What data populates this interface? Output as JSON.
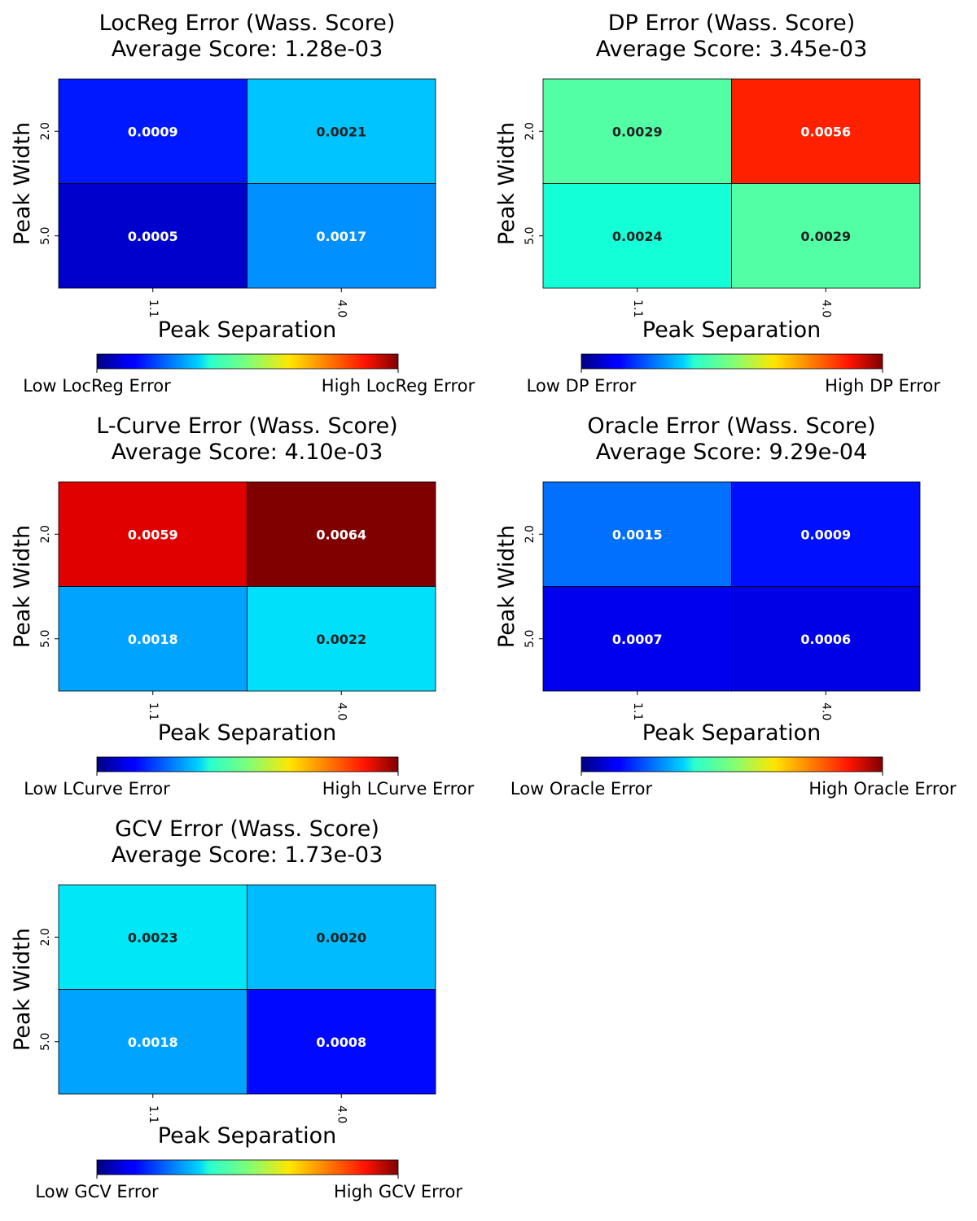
{
  "colormap": "jet",
  "chart_data": [
    {
      "type": "heatmap",
      "title": "LocReg Error (Wass. Score)",
      "subtitle": "Average Score: 1.28e-03",
      "xlabel": "Peak Separation",
      "ylabel": "Peak Width",
      "x_categories": [
        "1.1",
        "4.0"
      ],
      "y_categories": [
        "2.0",
        "5.0"
      ],
      "values": [
        [
          0.0009,
          0.0021
        ],
        [
          0.0005,
          0.0017
        ]
      ],
      "cell_colors": [
        [
          "#0018ff",
          "#00c4ff"
        ],
        [
          "#0000cc",
          "#0090ff"
        ]
      ],
      "label_colors": [
        [
          "#ffffff",
          "#222222"
        ],
        [
          "#ffffff",
          "#ffffff"
        ]
      ],
      "colorbar_low": "Low LocReg Error",
      "colorbar_high": "High LocReg Error"
    },
    {
      "type": "heatmap",
      "title": "DP Error (Wass. Score)",
      "subtitle": "Average Score: 3.45e-03",
      "xlabel": "Peak Separation",
      "ylabel": "Peak Width",
      "x_categories": [
        "1.1",
        "4.0"
      ],
      "y_categories": [
        "2.0",
        "5.0"
      ],
      "values": [
        [
          0.0029,
          0.0056
        ],
        [
          0.0024,
          0.0029
        ]
      ],
      "cell_colors": [
        [
          "#52ffa5",
          "#ff2000"
        ],
        [
          "#13ffd8",
          "#52ffa5"
        ]
      ],
      "label_colors": [
        [
          "#222222",
          "#ffffff"
        ],
        [
          "#222222",
          "#222222"
        ]
      ],
      "colorbar_low": "Low DP Error",
      "colorbar_high": "High DP Error"
    },
    {
      "type": "heatmap",
      "title": "L-Curve Error (Wass. Score)",
      "subtitle": "Average Score: 4.10e-03",
      "xlabel": "Peak Separation",
      "ylabel": "Peak Width",
      "x_categories": [
        "1.1",
        "4.0"
      ],
      "y_categories": [
        "2.0",
        "5.0"
      ],
      "values": [
        [
          0.0059,
          0.0064
        ],
        [
          0.0018,
          0.0022
        ]
      ],
      "cell_colors": [
        [
          "#e00000",
          "#800000"
        ],
        [
          "#00a4ff",
          "#00e0fb"
        ]
      ],
      "label_colors": [
        [
          "#ffffff",
          "#ffffff"
        ],
        [
          "#ffffff",
          "#222222"
        ]
      ],
      "colorbar_low": "Low LCurve Error",
      "colorbar_high": "High LCurve Error"
    },
    {
      "type": "heatmap",
      "title": "Oracle Error (Wass. Score)",
      "subtitle": "Average Score: 9.29e-04",
      "xlabel": "Peak Separation",
      "ylabel": "Peak Width",
      "x_categories": [
        "1.1",
        "4.0"
      ],
      "y_categories": [
        "2.0",
        "5.0"
      ],
      "values": [
        [
          0.0015,
          0.0009
        ],
        [
          0.0007,
          0.0006
        ]
      ],
      "cell_colors": [
        [
          "#0070ff",
          "#0010ff"
        ],
        [
          "#0000ee",
          "#0000e6"
        ]
      ],
      "label_colors": [
        [
          "#ffffff",
          "#ffffff"
        ],
        [
          "#ffffff",
          "#ffffff"
        ]
      ],
      "colorbar_low": "Low Oracle Error",
      "colorbar_high": "High Oracle Error"
    },
    {
      "type": "heatmap",
      "title": "GCV Error (Wass. Score)",
      "subtitle": "Average Score: 1.73e-03",
      "xlabel": "Peak Separation",
      "ylabel": "Peak Width",
      "x_categories": [
        "1.1",
        "4.0"
      ],
      "y_categories": [
        "2.0",
        "5.0"
      ],
      "values": [
        [
          0.0023,
          0.002
        ],
        [
          0.0018,
          0.0008
        ]
      ],
      "cell_colors": [
        [
          "#00e8f8",
          "#00bcff"
        ],
        [
          "#00a4ff",
          "#0008ff"
        ]
      ],
      "label_colors": [
        [
          "#222222",
          "#222222"
        ],
        [
          "#ffffff",
          "#ffffff"
        ]
      ],
      "colorbar_low": "Low GCV Error",
      "colorbar_high": "High GCV Error"
    }
  ]
}
